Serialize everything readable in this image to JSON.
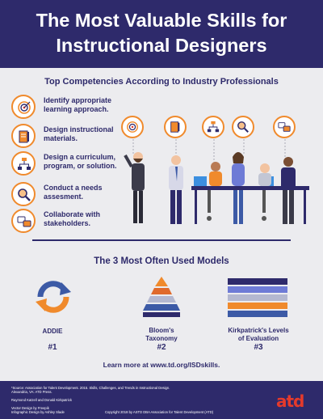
{
  "header": {
    "title_line1": "The Most Valuable Skills for",
    "title_line2": "Instructional Designers"
  },
  "competencies": {
    "heading": "Top Competencies According to Industry Professionals",
    "items": [
      {
        "label": "Identify appropriate learning approach.",
        "icon": "target-icon"
      },
      {
        "label": "Design instructional materials.",
        "icon": "document-pencil-icon"
      },
      {
        "label": "Design a curriculum, program, or solution.",
        "icon": "flowchart-icon"
      },
      {
        "label": "Conduct a needs assesment.",
        "icon": "magnifier-icon"
      },
      {
        "label": "Collaborate with stakeholders.",
        "icon": "speech-bubbles-icon"
      }
    ]
  },
  "models": {
    "heading": "The 3 Most Often Used Models",
    "items": [
      {
        "label": "ADDIE",
        "rank": "#1",
        "icon": "cycle-arrows-icon"
      },
      {
        "label": "Bloom's Taxonomy",
        "label_line1": "Bloom's",
        "label_line2": "Taxonomy",
        "rank": "#2",
        "icon": "pyramid-icon"
      },
      {
        "label": "Kirkpatrick's Levels of Evaluation",
        "label_line1": "Kirkpatrick's Levels",
        "label_line2": "of Evaluation",
        "rank": "#3",
        "icon": "stacked-bars-icon"
      }
    ]
  },
  "learn_more": "Learn more at www.td.org/ISDskills.",
  "footer": {
    "source_line1": "*Source: Association for Talent Development. 2015. Skills, Challenges, and Trends in Instructional Design.",
    "source_line2": "Alexandria, VA: ATD Press.",
    "credit_1": "Raymond Katzell and Donald Kirkpatrick",
    "credit_2": "Vector Design by Freepik",
    "credit_3": "Infographic Design by Ashley Slade",
    "copyright": "Copyright 2018 by ASTD DBA Association for Talent Development (ATD)",
    "logo_text": "atd"
  },
  "colors": {
    "navy": "#2e2a6b",
    "orange": "#f08a2c",
    "accent_red": "#e53a2b",
    "addie_blue": "#3c5aa6",
    "addie_orange": "#f08a2c"
  }
}
